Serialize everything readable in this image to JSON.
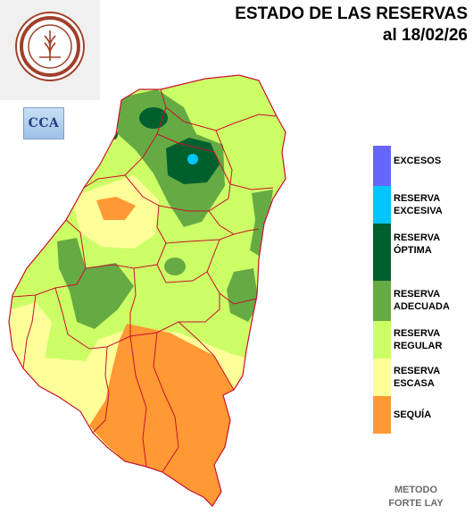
{
  "header": {
    "title_line1": "ESTADO DE LAS RESERVAS",
    "title_line2": "al 18/02/26"
  },
  "logo": {
    "name": "bolsa-de-cereales-seal"
  },
  "badge": {
    "text": "CCA"
  },
  "legend": {
    "items": [
      {
        "line1": "EXCESOS",
        "line2": "",
        "color": "#6666ff"
      },
      {
        "line1": "RESERVA",
        "line2": "EXCESIVA",
        "color": "#00c6ff"
      },
      {
        "line1": "RESERVA",
        "line2": "ÓPTIMA",
        "color": "#00602d"
      },
      {
        "line1": "RESERVA",
        "line2": "ADECUADA",
        "color": "#66aa44"
      },
      {
        "line1": "RESERVA",
        "line2": "REGULAR",
        "color": "#ccff66"
      },
      {
        "line1": "RESERVA",
        "line2": "ESCASA",
        "color": "#ffff99"
      },
      {
        "line1": "SEQUÍA",
        "line2": "",
        "color": "#ff9933"
      }
    ]
  },
  "footer": {
    "method_line1": "METODO",
    "method_line2": "FORTE LAY"
  }
}
